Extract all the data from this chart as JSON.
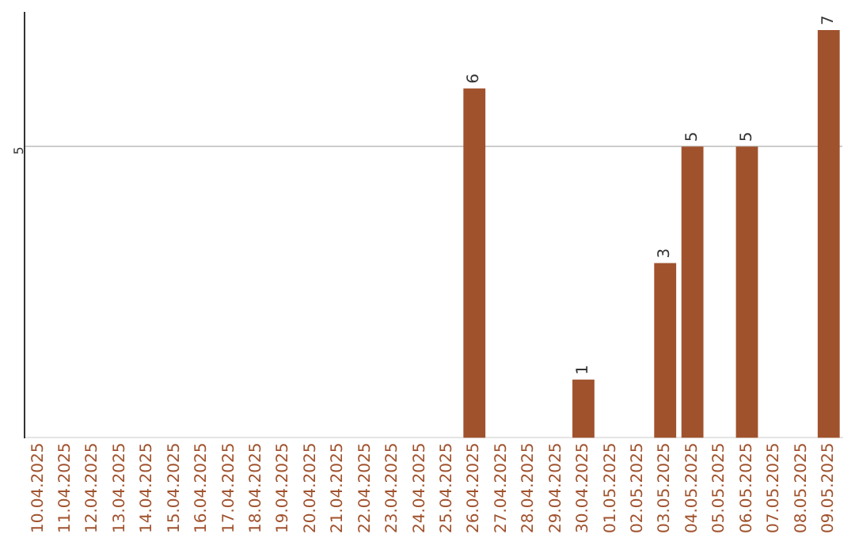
{
  "chart_data": {
    "type": "bar",
    "categories": [
      "10.04.2025",
      "11.04.2025",
      "12.04.2025",
      "13.04.2025",
      "14.04.2025",
      "15.04.2025",
      "16.04.2025",
      "17.04.2025",
      "18.04.2025",
      "19.04.2025",
      "20.04.2025",
      "21.04.2025",
      "22.04.2025",
      "23.04.2025",
      "24.04.2025",
      "25.04.2025",
      "26.04.2025",
      "27.04.2025",
      "28.04.2025",
      "29.04.2025",
      "30.04.2025",
      "01.05.2025",
      "02.05.2025",
      "03.05.2025",
      "04.05.2025",
      "05.05.2025",
      "06.05.2025",
      "07.05.2025",
      "08.05.2025",
      "09.05.2025"
    ],
    "values": [
      null,
      null,
      null,
      null,
      null,
      null,
      null,
      null,
      null,
      null,
      null,
      null,
      null,
      null,
      null,
      null,
      6,
      null,
      null,
      null,
      1,
      null,
      null,
      3,
      5,
      null,
      5,
      null,
      null,
      7
    ],
    "color": "#a0522d",
    "ylim": [
      0,
      7.3
    ],
    "yticks": [
      5
    ],
    "grid": "y",
    "data_labels": true,
    "legend": false
  }
}
